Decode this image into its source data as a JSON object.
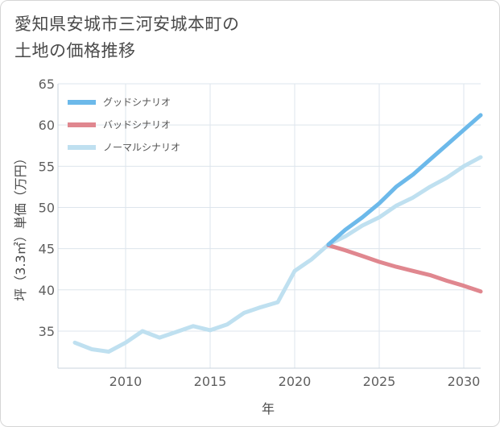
{
  "chart_data": {
    "type": "line",
    "title_lines": [
      "愛知県安城市三河安城本町の",
      "土地の価格推移"
    ],
    "xlabel": "年",
    "ylabel": "坪（3.3㎡）単価（万円）",
    "xlim": [
      2006,
      2031
    ],
    "ylim": [
      30.5,
      65
    ],
    "xticks": [
      2010,
      2015,
      2020,
      2025,
      2030
    ],
    "yticks": [
      35,
      40,
      45,
      50,
      55,
      60,
      65
    ],
    "grid": true,
    "legend_position": "top-left",
    "series": [
      {
        "name": "グッドシナリオ",
        "color": "#6cb9ea",
        "x": [
          2022,
          2023,
          2024,
          2025,
          2026,
          2027,
          2028,
          2029,
          2030,
          2031
        ],
        "y": [
          45.5,
          47.3,
          48.8,
          50.5,
          52.5,
          54.0,
          55.8,
          57.6,
          59.4,
          61.2
        ]
      },
      {
        "name": "バッドシナリオ",
        "color": "#e0878f",
        "x": [
          2022,
          2023,
          2024,
          2025,
          2026,
          2027,
          2028,
          2029,
          2030,
          2031
        ],
        "y": [
          45.4,
          44.8,
          44.1,
          43.4,
          42.8,
          42.3,
          41.8,
          41.1,
          40.5,
          39.8
        ]
      },
      {
        "name": "ノーマルシナリオ",
        "color": "#bfe0f0",
        "x": [
          2007,
          2008,
          2009,
          2010,
          2011,
          2012,
          2013,
          2014,
          2015,
          2016,
          2017,
          2018,
          2019,
          2020,
          2021,
          2022,
          2023,
          2024,
          2025,
          2026,
          2027,
          2028,
          2029,
          2030,
          2031
        ],
        "y": [
          33.6,
          32.8,
          32.5,
          33.6,
          35.0,
          34.2,
          34.9,
          35.6,
          35.1,
          35.8,
          37.2,
          37.9,
          38.5,
          42.3,
          43.7,
          45.5,
          46.5,
          47.8,
          48.8,
          50.2,
          51.2,
          52.5,
          53.6,
          55.0,
          56.1
        ]
      }
    ]
  }
}
